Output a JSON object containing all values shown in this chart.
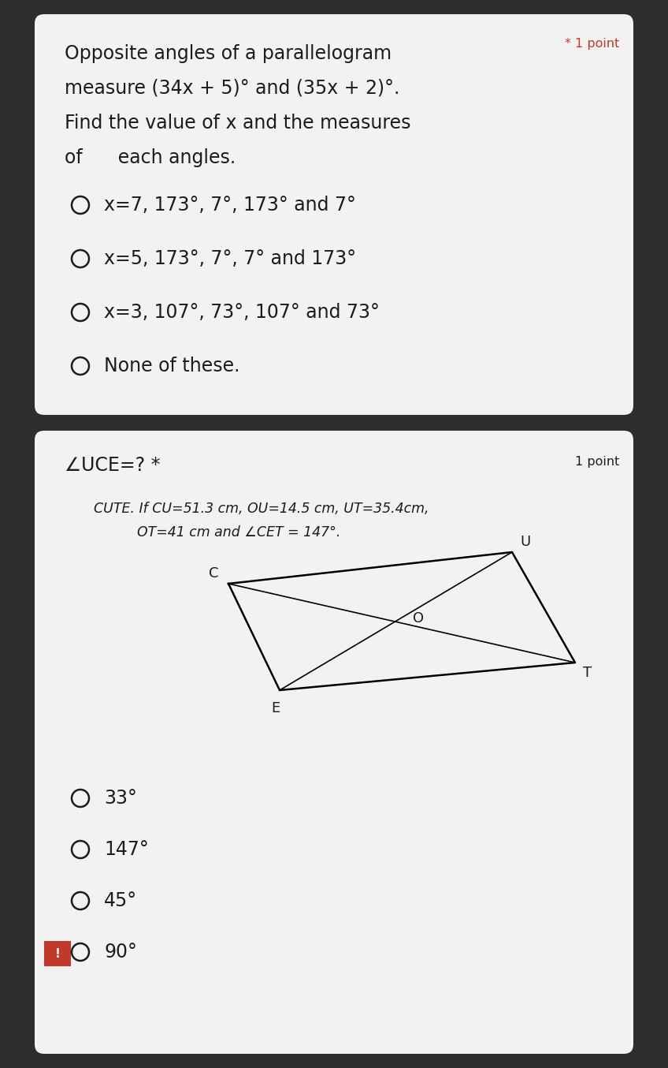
{
  "bg_outer": "#2d2d2d",
  "bg_card1": "#f2f2f2",
  "bg_card2": "#f2f2f2",
  "q1_star_text": "* 1 point",
  "q1_title_lines": [
    "Opposite angles of a parallelogram",
    "measure (34x + 5)° and (35x + 2)°.",
    "Find the value of x and the measures",
    "of      each angles."
  ],
  "q1_options": [
    "x=7, 173°, 7°, 173° and 7°",
    "x=5, 173°, 7°, 7° and 173°",
    "x=3, 107°, 73°, 107° and 73°",
    "None of these."
  ],
  "q2_title": "∠UCE=? *",
  "q2_point_text": "1 point",
  "q2_desc_line1": "CUTE. If CU=51.3 cm, OU=14.5 cm, UT=35.4cm,",
  "q2_desc_line2": "OT=41 cm and ∠CET = 147°.",
  "q2_options": [
    "33°",
    "147°",
    "45°",
    "90°"
  ],
  "q2_exclamation_option": 3,
  "text_color": "#1c1c1c",
  "radio_color": "#1c1c1c",
  "star_color": "#c0392b",
  "exclaim_bg": "#c0392b"
}
